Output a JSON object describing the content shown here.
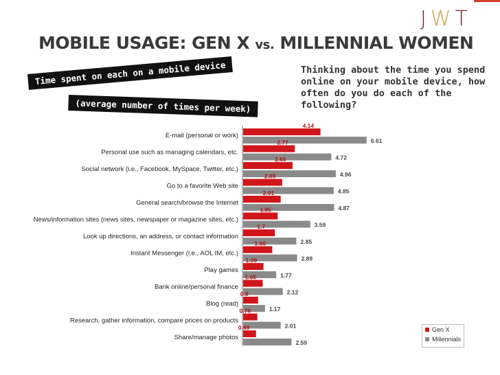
{
  "logo": {
    "letters": [
      "J",
      "W",
      "T"
    ]
  },
  "title": {
    "main": "MOBILE USAGE: GEN X",
    "vs": "vs.",
    "rest": "MILLENNIAL WOMEN"
  },
  "banners": {
    "line1": "Time spent on each on a mobile device",
    "line2": "(average number of times per week)"
  },
  "question": "Thinking about the time you spend online on your mobile device, how often do you do each of the following?",
  "colors": {
    "genx": "#d0161b",
    "millennials": "#8a8a8a",
    "logo_accent": "#d23b2c"
  },
  "chart_data": {
    "type": "bar",
    "orientation": "horizontal",
    "categories": [
      "E-mail (personal or work)",
      "Personal use such as managing calendars, etc.",
      "Social network (i.e., Facebook, MySpace, Twitter, etc.)",
      "Go to a favorite Web site",
      "General search/browse the Internet",
      "News/information sites (news sites, newspaper or magazine sites, etc.)",
      "Look up directions, an address, or contact information",
      "Instant Messenger (i.e., AOL IM, etc.)",
      "Play games",
      "Bank online/personal finance",
      "Blog (read)",
      "Research, gather information, compare prices on products",
      "Share/manage photos"
    ],
    "series": [
      {
        "name": "Gen X",
        "values": [
          4.14,
          2.77,
          2.65,
          2.09,
          2.01,
          1.85,
          1.7,
          1.56,
          1.09,
          1.05,
          0.8,
          0.76,
          0.69
        ],
        "labels": [
          "4.14",
          "2.77",
          "2.65",
          "2.09",
          "2.01",
          "1.85",
          "1.7",
          "1.56",
          "1.09",
          "1.05",
          "0.8",
          "0.76",
          "0.69"
        ]
      },
      {
        "name": "Millennials",
        "values": [
          6.61,
          4.72,
          4.96,
          4.85,
          4.87,
          3.59,
          2.85,
          2.89,
          1.77,
          2.12,
          1.17,
          2.01,
          2.59
        ],
        "labels": [
          "6.61",
          "4.72",
          "4.96",
          "4.85",
          "4.87",
          "3.59",
          "2.85",
          "2.89",
          "1.77",
          "2.12",
          "1.17",
          "2.01",
          "2.59"
        ]
      }
    ],
    "legend_position": "bottom-right",
    "grid": false
  }
}
